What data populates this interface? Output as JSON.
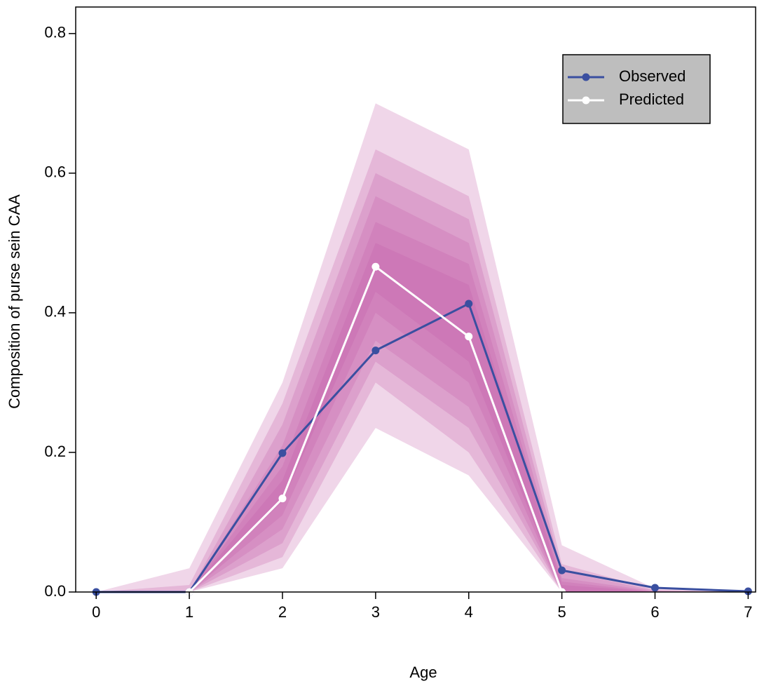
{
  "chart_data": {
    "type": "line",
    "x_label": "Age",
    "y_label": "Composition of purse sein CAA",
    "x": [
      0,
      1,
      2,
      3,
      4,
      5,
      6,
      7
    ],
    "xlim": [
      -0.22,
      7.08
    ],
    "ylim": [
      0,
      0.838
    ],
    "xticks": [
      0,
      1,
      2,
      3,
      4,
      5,
      6,
      7
    ],
    "yticks": [
      {
        "value": 0,
        "label": "0.0"
      },
      0.2,
      0.4,
      0.6,
      0.8
    ],
    "band_color": "#c35aa6",
    "bands": [
      {
        "lower": [
          0,
          0,
          0.034,
          0.235,
          0.167,
          0,
          0,
          0
        ],
        "upper": [
          0,
          0.034,
          0.3,
          0.7,
          0.634,
          0.067,
          0.005,
          0
        ]
      },
      {
        "lower": [
          0,
          0,
          0.05,
          0.3,
          0.2,
          0,
          0,
          0
        ],
        "upper": [
          0,
          0.01,
          0.27,
          0.634,
          0.567,
          0.04,
          0.003,
          0
        ]
      },
      {
        "lower": [
          0,
          0,
          0.07,
          0.33,
          0.235,
          0,
          0,
          0
        ],
        "upper": [
          0,
          0,
          0.24,
          0.6,
          0.534,
          0.03,
          0.002,
          0
        ]
      },
      {
        "lower": [
          0,
          0,
          0.09,
          0.36,
          0.265,
          0,
          0,
          0
        ],
        "upper": [
          0,
          0,
          0.21,
          0.567,
          0.5,
          0.02,
          0.001,
          0
        ]
      },
      {
        "lower": [
          0,
          0,
          0.11,
          0.4,
          0.3,
          0,
          0,
          0
        ],
        "upper": [
          0,
          0,
          0.18,
          0.53,
          0.47,
          0.015,
          0,
          0
        ]
      },
      {
        "lower": [
          0,
          0,
          0.13,
          0.43,
          0.33,
          0,
          0,
          0
        ],
        "upper": [
          0,
          0,
          0.16,
          0.5,
          0.44,
          0.01,
          0,
          0
        ]
      }
    ],
    "series": [
      {
        "name": "Observed",
        "color": "#3a4fa0",
        "values": [
          0,
          0,
          0.199,
          0.346,
          0.413,
          0.031,
          0.006,
          0.001
        ]
      },
      {
        "name": "Predicted",
        "color": "#ffffff",
        "values": [
          null,
          0,
          0.134,
          0.466,
          0.366,
          0,
          null,
          null
        ]
      }
    ],
    "legend_background": "#bebebe"
  }
}
